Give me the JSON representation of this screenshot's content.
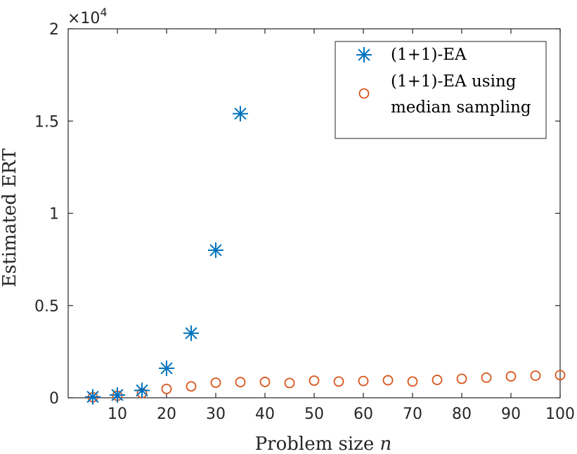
{
  "chart_data": {
    "type": "scatter",
    "xlabel": "Problem size",
    "xlabel_var": "n",
    "ylabel": "Estimated ERT",
    "y_exponent_base": "×10",
    "y_exponent_power": "4",
    "xlim": [
      0,
      100
    ],
    "ylim": [
      0,
      20000
    ],
    "xticks": [
      10,
      20,
      30,
      40,
      50,
      60,
      70,
      80,
      90,
      100
    ],
    "yticks": [
      0,
      5000,
      10000,
      15000,
      20000
    ],
    "ytick_labels": [
      "0",
      "0.5",
      "1",
      "1.5",
      "2"
    ],
    "grid": false,
    "legend_position": "top-right",
    "series": [
      {
        "name": "(1+1)-EA",
        "marker": "asterisk",
        "color": "#0072BD",
        "x": [
          5,
          10,
          15,
          20,
          25,
          30,
          35
        ],
        "y": [
          50,
          150,
          400,
          1600,
          3500,
          8000,
          15400
        ]
      },
      {
        "name_line1": "(1+1)-EA using",
        "name_line2": "median sampling",
        "marker": "circle",
        "color": "#D95319",
        "x": [
          5,
          10,
          15,
          20,
          25,
          30,
          35,
          40,
          45,
          50,
          55,
          60,
          65,
          70,
          75,
          80,
          85,
          90,
          95,
          100
        ],
        "y": [
          30,
          110,
          250,
          480,
          620,
          820,
          850,
          860,
          800,
          930,
          880,
          910,
          950,
          880,
          970,
          1030,
          1090,
          1160,
          1200,
          1230
        ]
      }
    ]
  }
}
